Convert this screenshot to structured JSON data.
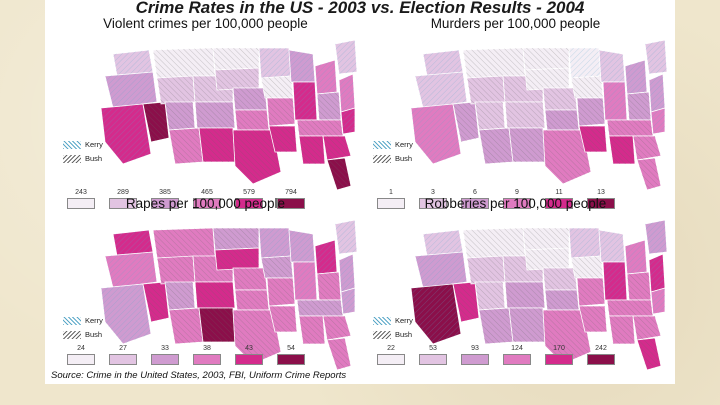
{
  "title": "Crime Rates in the US - 2003 vs. Election Results - 2004",
  "source": "Source: Crime in the United States, 2003, FBI, Uniform Crime Reports",
  "overlay_keys": [
    {
      "label": "Kerry",
      "color": "#5aa8c8"
    },
    {
      "label": "Bush",
      "color": "#666666"
    }
  ],
  "maps": [
    {
      "heading": "Violent crimes per 100,000 people",
      "bins": [
        "243",
        "289",
        "385",
        "465",
        "579",
        "794"
      ]
    },
    {
      "heading": "Murders per 100,000 people",
      "bins": [
        "1",
        "3",
        "6",
        "9",
        "11",
        "13"
      ]
    },
    {
      "heading": "Rapes per 100,000 people",
      "bins": [
        "24",
        "27",
        "33",
        "38",
        "43",
        "54"
      ]
    },
    {
      "heading": "Robberies per 100,000 people",
      "bins": [
        "22",
        "53",
        "93",
        "124",
        "170",
        "242"
      ]
    }
  ],
  "palette": [
    "#f4eef5",
    "#e2c4e2",
    "#cf9bd0",
    "#e07bc0",
    "#d42b8c",
    "#8b0f4a"
  ]
}
